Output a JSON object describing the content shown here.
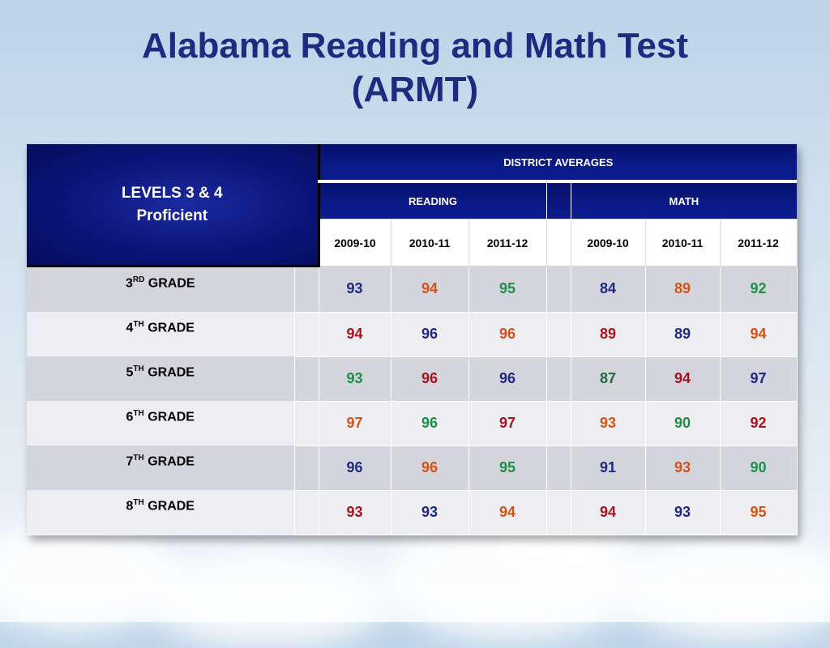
{
  "title": {
    "line1": "Alabama Reading and Math Test",
    "line2": "(ARMT)"
  },
  "table": {
    "corner": {
      "line1": "LEVELS 3 & 4",
      "line2": "Proficient"
    },
    "group_header": "DISTRICT AVERAGES",
    "subjects": {
      "reading": "READING",
      "math": "MATH"
    },
    "years": [
      "2009-10",
      "2010-11",
      "2011-12"
    ],
    "rows": [
      {
        "num": "3",
        "sup": "RD",
        "label": " GRADE",
        "reading": [
          "93",
          "94",
          "95"
        ],
        "math": [
          "84",
          "89",
          "92"
        ]
      },
      {
        "num": "4",
        "sup": "TH",
        "label": " GRADE",
        "reading": [
          "94",
          "96",
          "96"
        ],
        "math": [
          "89",
          "89",
          "94"
        ]
      },
      {
        "num": "5",
        "sup": "TH",
        "label": " GRADE",
        "reading": [
          "93",
          "96",
          "96"
        ],
        "math": [
          "87",
          "94",
          "97"
        ]
      },
      {
        "num": "6",
        "sup": "TH",
        "label": " GRADE",
        "reading": [
          "97",
          "96",
          "97"
        ],
        "math": [
          "93",
          "90",
          "92"
        ]
      },
      {
        "num": "7",
        "sup": "TH",
        "label": " GRADE",
        "reading": [
          "96",
          "96",
          "95"
        ],
        "math": [
          "91",
          "93",
          "90"
        ]
      },
      {
        "num": "8",
        "sup": "TH",
        "label": " GRADE",
        "reading": [
          "93",
          "93",
          "94"
        ],
        "math": [
          "94",
          "93",
          "95"
        ]
      }
    ],
    "value_colors": {
      "reading": [
        [
          "#1f2a80",
          "#d0541a",
          "#1f8f4a"
        ],
        [
          "#a3161e",
          "#1f2a80",
          "#d0541a"
        ],
        [
          "#1f8f4a",
          "#a3161e",
          "#1f2a80"
        ],
        [
          "#d0541a",
          "#1f8f4a",
          "#a3161e"
        ],
        [
          "#1f2a80",
          "#d0541a",
          "#1f8f4a"
        ],
        [
          "#a3161e",
          "#1f2a80",
          "#d0541a"
        ]
      ],
      "math": [
        [
          "#1f2a80",
          "#d0541a",
          "#1f8f4a"
        ],
        [
          "#a3161e",
          "#1f2a80",
          "#d0541a"
        ],
        [
          "#1f6a3a",
          "#a3161e",
          "#1f2a80"
        ],
        [
          "#d0541a",
          "#1f8f4a",
          "#a3161e"
        ],
        [
          "#1f2a80",
          "#d0541a",
          "#1f8f4a"
        ],
        [
          "#a3161e",
          "#1f2a80",
          "#d0541a"
        ]
      ]
    }
  }
}
